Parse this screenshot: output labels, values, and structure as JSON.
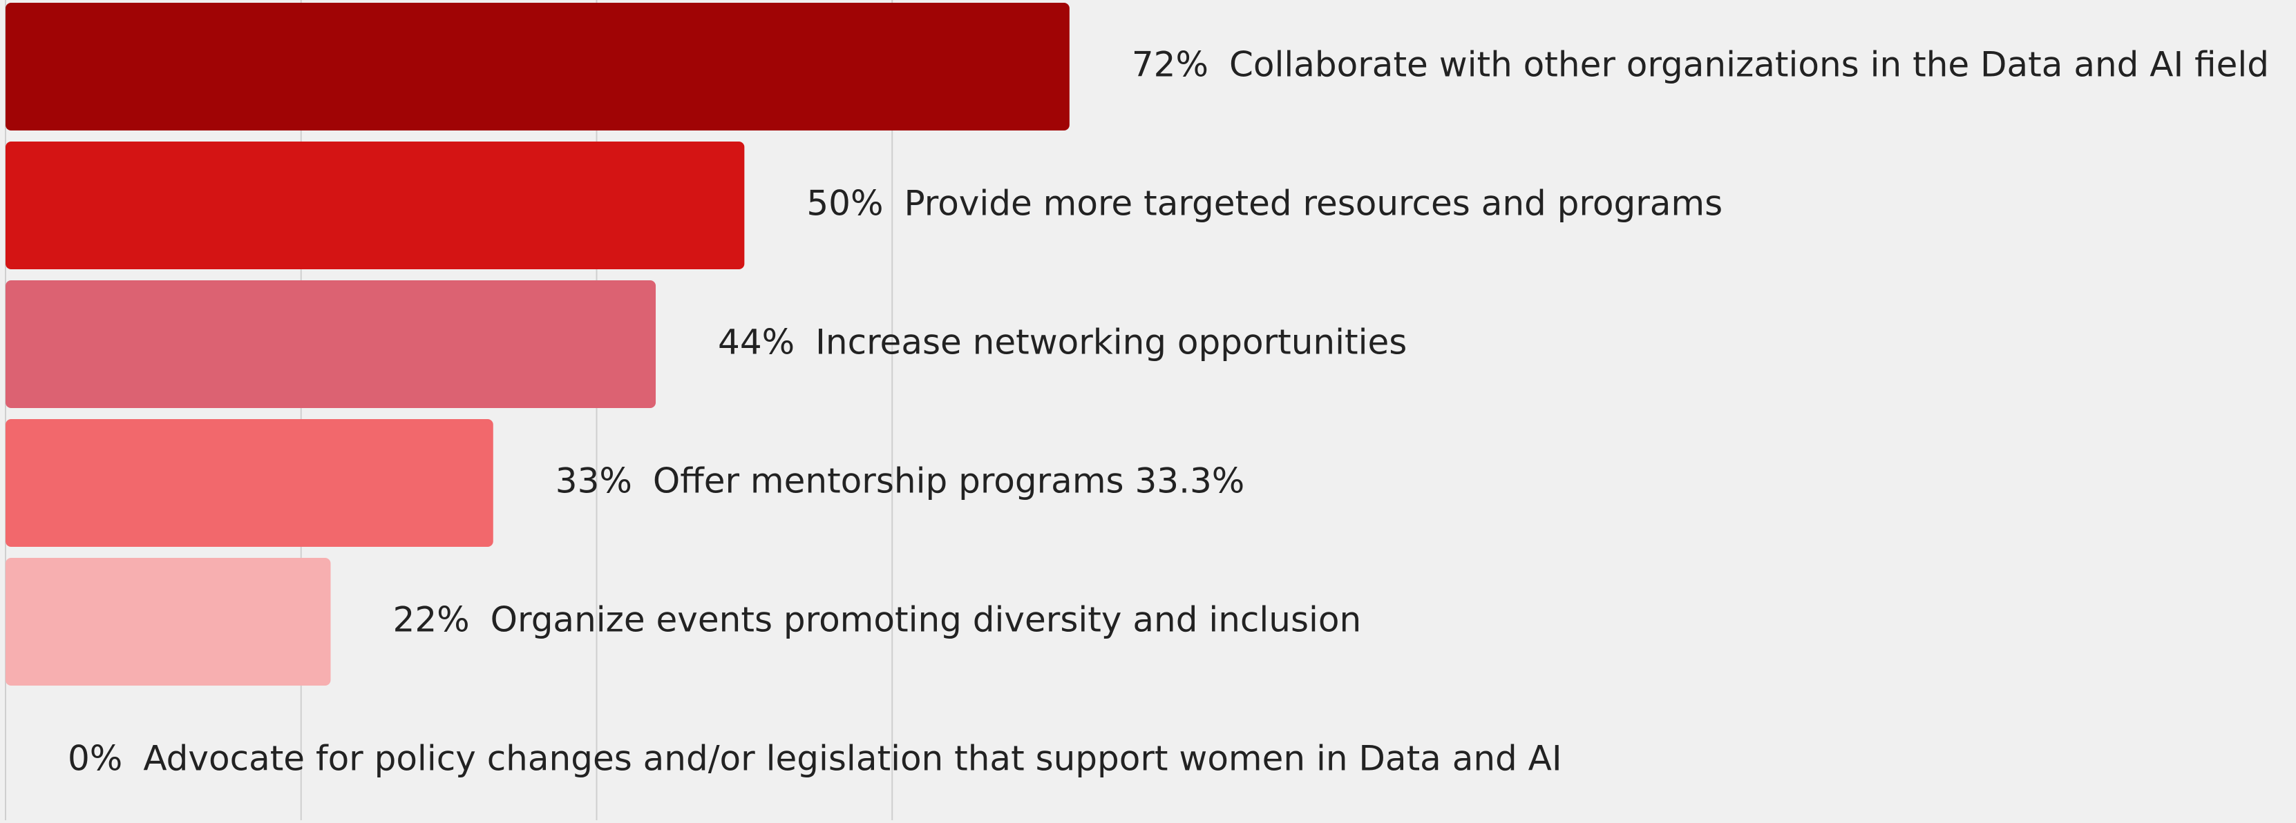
{
  "chart_data": {
    "type": "bar",
    "orientation": "horizontal",
    "categories": [
      "Collaborate with other organizations in the Data and AI field",
      "Provide more targeted resources and programs",
      "Increase networking opportunities",
      "Offer mentorship programs 33.3%",
      "Organize events promoting diversity and inclusion",
      "Advocate for policy changes and/or legislation that support women in Data and AI"
    ],
    "values": [
      72,
      50,
      44,
      33,
      22,
      0
    ],
    "value_labels": [
      "72%",
      "50%",
      "44%",
      "33%",
      "22%",
      "0%"
    ],
    "colors": [
      "#a00405",
      "#d41414",
      "#dc6272",
      "#f2686c",
      "#f7afb0",
      "#fbd0d0"
    ],
    "xlim": [
      0,
      155
    ],
    "xticks": [
      0,
      20,
      40,
      60
    ],
    "grid": true
  }
}
